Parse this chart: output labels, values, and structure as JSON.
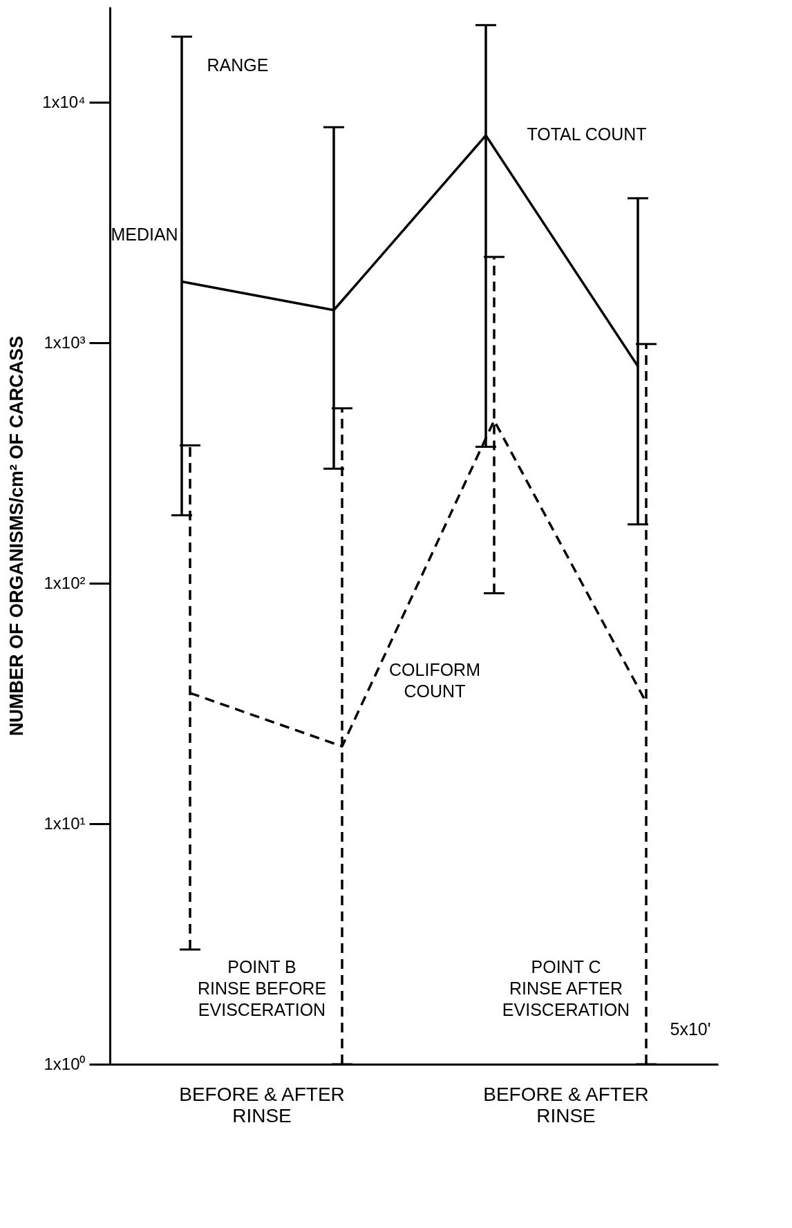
{
  "chart_data": {
    "type": "line",
    "ylabel": "NUMBER OF ORGANISMS/cm² OF CARCASS",
    "log": true,
    "ylim": [
      1,
      25000
    ],
    "yticks": [
      {
        "value": 1,
        "label": "1x10⁰"
      },
      {
        "value": 10,
        "label": "1x10¹"
      },
      {
        "value": 100,
        "label": "1x10²"
      },
      {
        "value": 1000,
        "label": "1x10³"
      },
      {
        "value": 10000,
        "label": "1x10⁴"
      }
    ],
    "categories": [
      null,
      null,
      null,
      null
    ],
    "marker": "none",
    "grid": false,
    "series": [
      {
        "color": "#000000",
        "line_style": "dashed",
        "values": [
          35,
          21,
          476,
          32
        ],
        "errors": [
          [
            3,
            375
          ],
          [
            1,
            535
          ],
          [
            91,
            2280
          ],
          [
            1,
            990
          ]
        ]
      },
      {
        "color": "#000000",
        "line_style": "solid",
        "values": [
          1800,
          1370,
          7300,
          800
        ],
        "errors": [
          [
            192,
            18800
          ],
          [
            300,
            7900
          ],
          [
            370,
            21000
          ],
          [
            176,
            4000
          ]
        ]
      }
    ],
    "annotations": [
      "RANGE",
      "MEDIAN",
      "TOTAL COUNT",
      "COLIFORM\nCOUNT",
      "POINT B\nRINSE BEFORE\nEVISCERATION",
      "POINT C\nRINSE AFTER\nEVISCERATION",
      "5x10'",
      "BEFORE & AFTER\nRINSE",
      "BEFORE & AFTER\nRINSE"
    ]
  }
}
